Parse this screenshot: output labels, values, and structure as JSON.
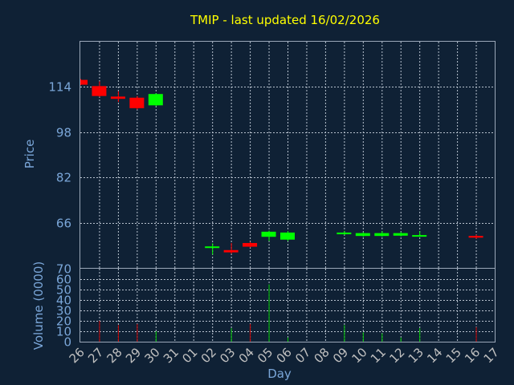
{
  "title": "TMIP - last updated 16/02/2026",
  "chart_data": [
    {
      "type": "candlestick",
      "ylabel": "Price",
      "ylim": [
        50,
        130
      ],
      "yticks": [
        66,
        82,
        98,
        114
      ],
      "grid": true,
      "days": [
        "26",
        "27",
        "28",
        "29",
        "30",
        "31",
        "01",
        "02",
        "03",
        "04",
        "05",
        "06",
        "07",
        "08",
        "09",
        "10",
        "11",
        "12",
        "13",
        "14",
        "15",
        "16",
        "17"
      ],
      "candles": [
        {
          "day": "26",
          "open": 116.5,
          "close": 114.8,
          "high": 116.8,
          "low": 114.6
        },
        {
          "day": "27",
          "open": 114.3,
          "close": 110.8,
          "high": 116.0,
          "low": 110.5
        },
        {
          "day": "28",
          "open": 110.6,
          "close": 109.8,
          "high": 112.5,
          "low": 108.7
        },
        {
          "day": "29",
          "open": 110.2,
          "close": 106.5,
          "high": 110.8,
          "low": 106.0
        },
        {
          "day": "30",
          "open": 107.5,
          "close": 111.5,
          "high": 111.8,
          "low": 107.2
        },
        {
          "day": "02",
          "open": 57.2,
          "close": 57.6,
          "high": 58.7,
          "low": 54.7
        },
        {
          "day": "03",
          "open": 56.3,
          "close": 55.5,
          "high": 58.8,
          "low": 55.0
        },
        {
          "day": "04",
          "open": 58.8,
          "close": 57.5,
          "high": 59.2,
          "low": 57.2
        },
        {
          "day": "05",
          "open": 61.0,
          "close": 62.8,
          "high": 63.2,
          "low": 59.5
        },
        {
          "day": "06",
          "open": 60.0,
          "close": 62.5,
          "high": 63.0,
          "low": 59.5
        },
        {
          "day": "09",
          "open": 61.9,
          "close": 62.5,
          "high": 63.1,
          "low": 61.7
        },
        {
          "day": "10",
          "open": 61.3,
          "close": 62.3,
          "high": 62.6,
          "low": 61.0
        },
        {
          "day": "11",
          "open": 61.3,
          "close": 62.3,
          "high": 63.0,
          "low": 61.0
        },
        {
          "day": "12",
          "open": 61.4,
          "close": 62.3,
          "high": 62.7,
          "low": 61.1
        },
        {
          "day": "13",
          "open": 61.2,
          "close": 61.6,
          "high": 63.0,
          "low": 61.0
        },
        {
          "day": "16",
          "open": 61.3,
          "close": 60.7,
          "high": 61.8,
          "low": 60.3
        }
      ]
    },
    {
      "type": "bar",
      "ylabel": "Volume (0000)",
      "xlabel": "Day",
      "ylim": [
        0,
        70
      ],
      "yticks": [
        0,
        10,
        20,
        30,
        40,
        50,
        60,
        70
      ],
      "grid": true,
      "categories": [
        "26",
        "27",
        "28",
        "29",
        "30",
        "31",
        "01",
        "02",
        "03",
        "04",
        "05",
        "06",
        "07",
        "08",
        "09",
        "10",
        "11",
        "12",
        "13",
        "14",
        "15",
        "16",
        "17"
      ],
      "values": [
        {
          "day": "27",
          "value": 20,
          "color": "red"
        },
        {
          "day": "28",
          "value": 16,
          "color": "red"
        },
        {
          "day": "29",
          "value": 17,
          "color": "red"
        },
        {
          "day": "30",
          "value": 10,
          "color": "green"
        },
        {
          "day": "03",
          "value": 13,
          "color": "green"
        },
        {
          "day": "04",
          "value": 17,
          "color": "red"
        },
        {
          "day": "05",
          "value": 55,
          "color": "green"
        },
        {
          "day": "06",
          "value": 4,
          "color": "green"
        },
        {
          "day": "09",
          "value": 16,
          "color": "green"
        },
        {
          "day": "10",
          "value": 9,
          "color": "green"
        },
        {
          "day": "11",
          "value": 8,
          "color": "green"
        },
        {
          "day": "12",
          "value": 4,
          "color": "green"
        },
        {
          "day": "13",
          "value": 13,
          "color": "green"
        },
        {
          "day": "16",
          "value": 14,
          "color": "red"
        }
      ]
    }
  ],
  "colors": {
    "up": "#00ff00",
    "down": "#ff0000",
    "background": "#0f2135",
    "title": "#ffff00",
    "axis_text": "#7aa6d8"
  }
}
